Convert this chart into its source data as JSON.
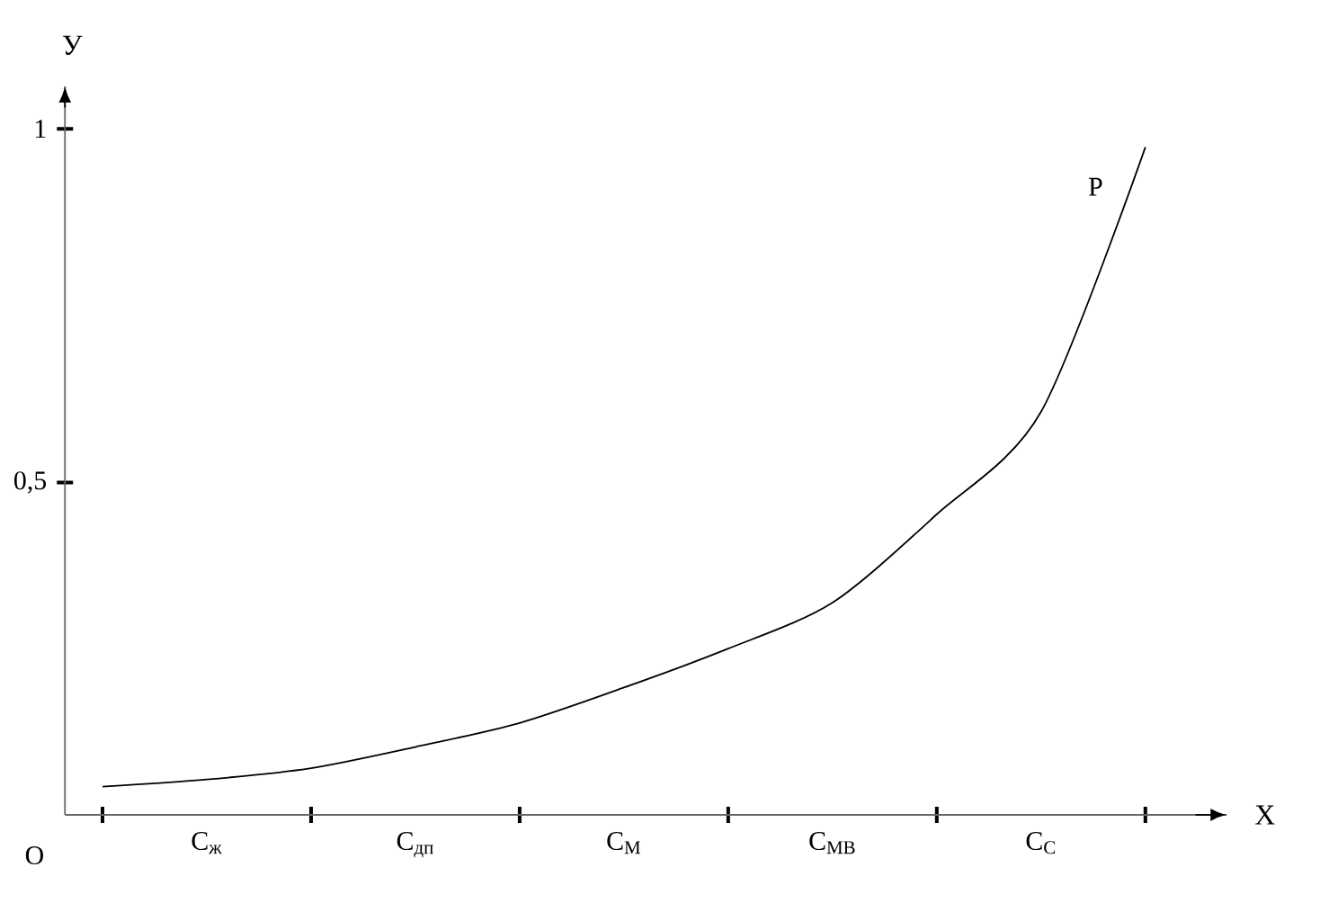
{
  "chart_data": {
    "type": "line",
    "xlabel": "X",
    "ylabel": "У",
    "categories": [
      null,
      "С$_{ж}$",
      null,
      "С$_{дп}$",
      null,
      "С$_{М}$",
      null,
      "С$_{МВ}$",
      null,
      "С$_{С}$",
      null
    ],
    "ylim": [
      0.03,
      1.06
    ],
    "yticks": [
      {
        "value": 0.5,
        "label": "0,5"
      },
      1
    ],
    "series": [
      {
        "name": "Р",
        "color": "#000000",
        "values": [
          0.07,
          0.08,
          0.096,
          0.126,
          0.16,
          0.21,
          0.265,
          0.33,
          0.455,
          0.6,
          0.974
        ]
      }
    ],
    "annotations": [
      "O"
    ]
  }
}
